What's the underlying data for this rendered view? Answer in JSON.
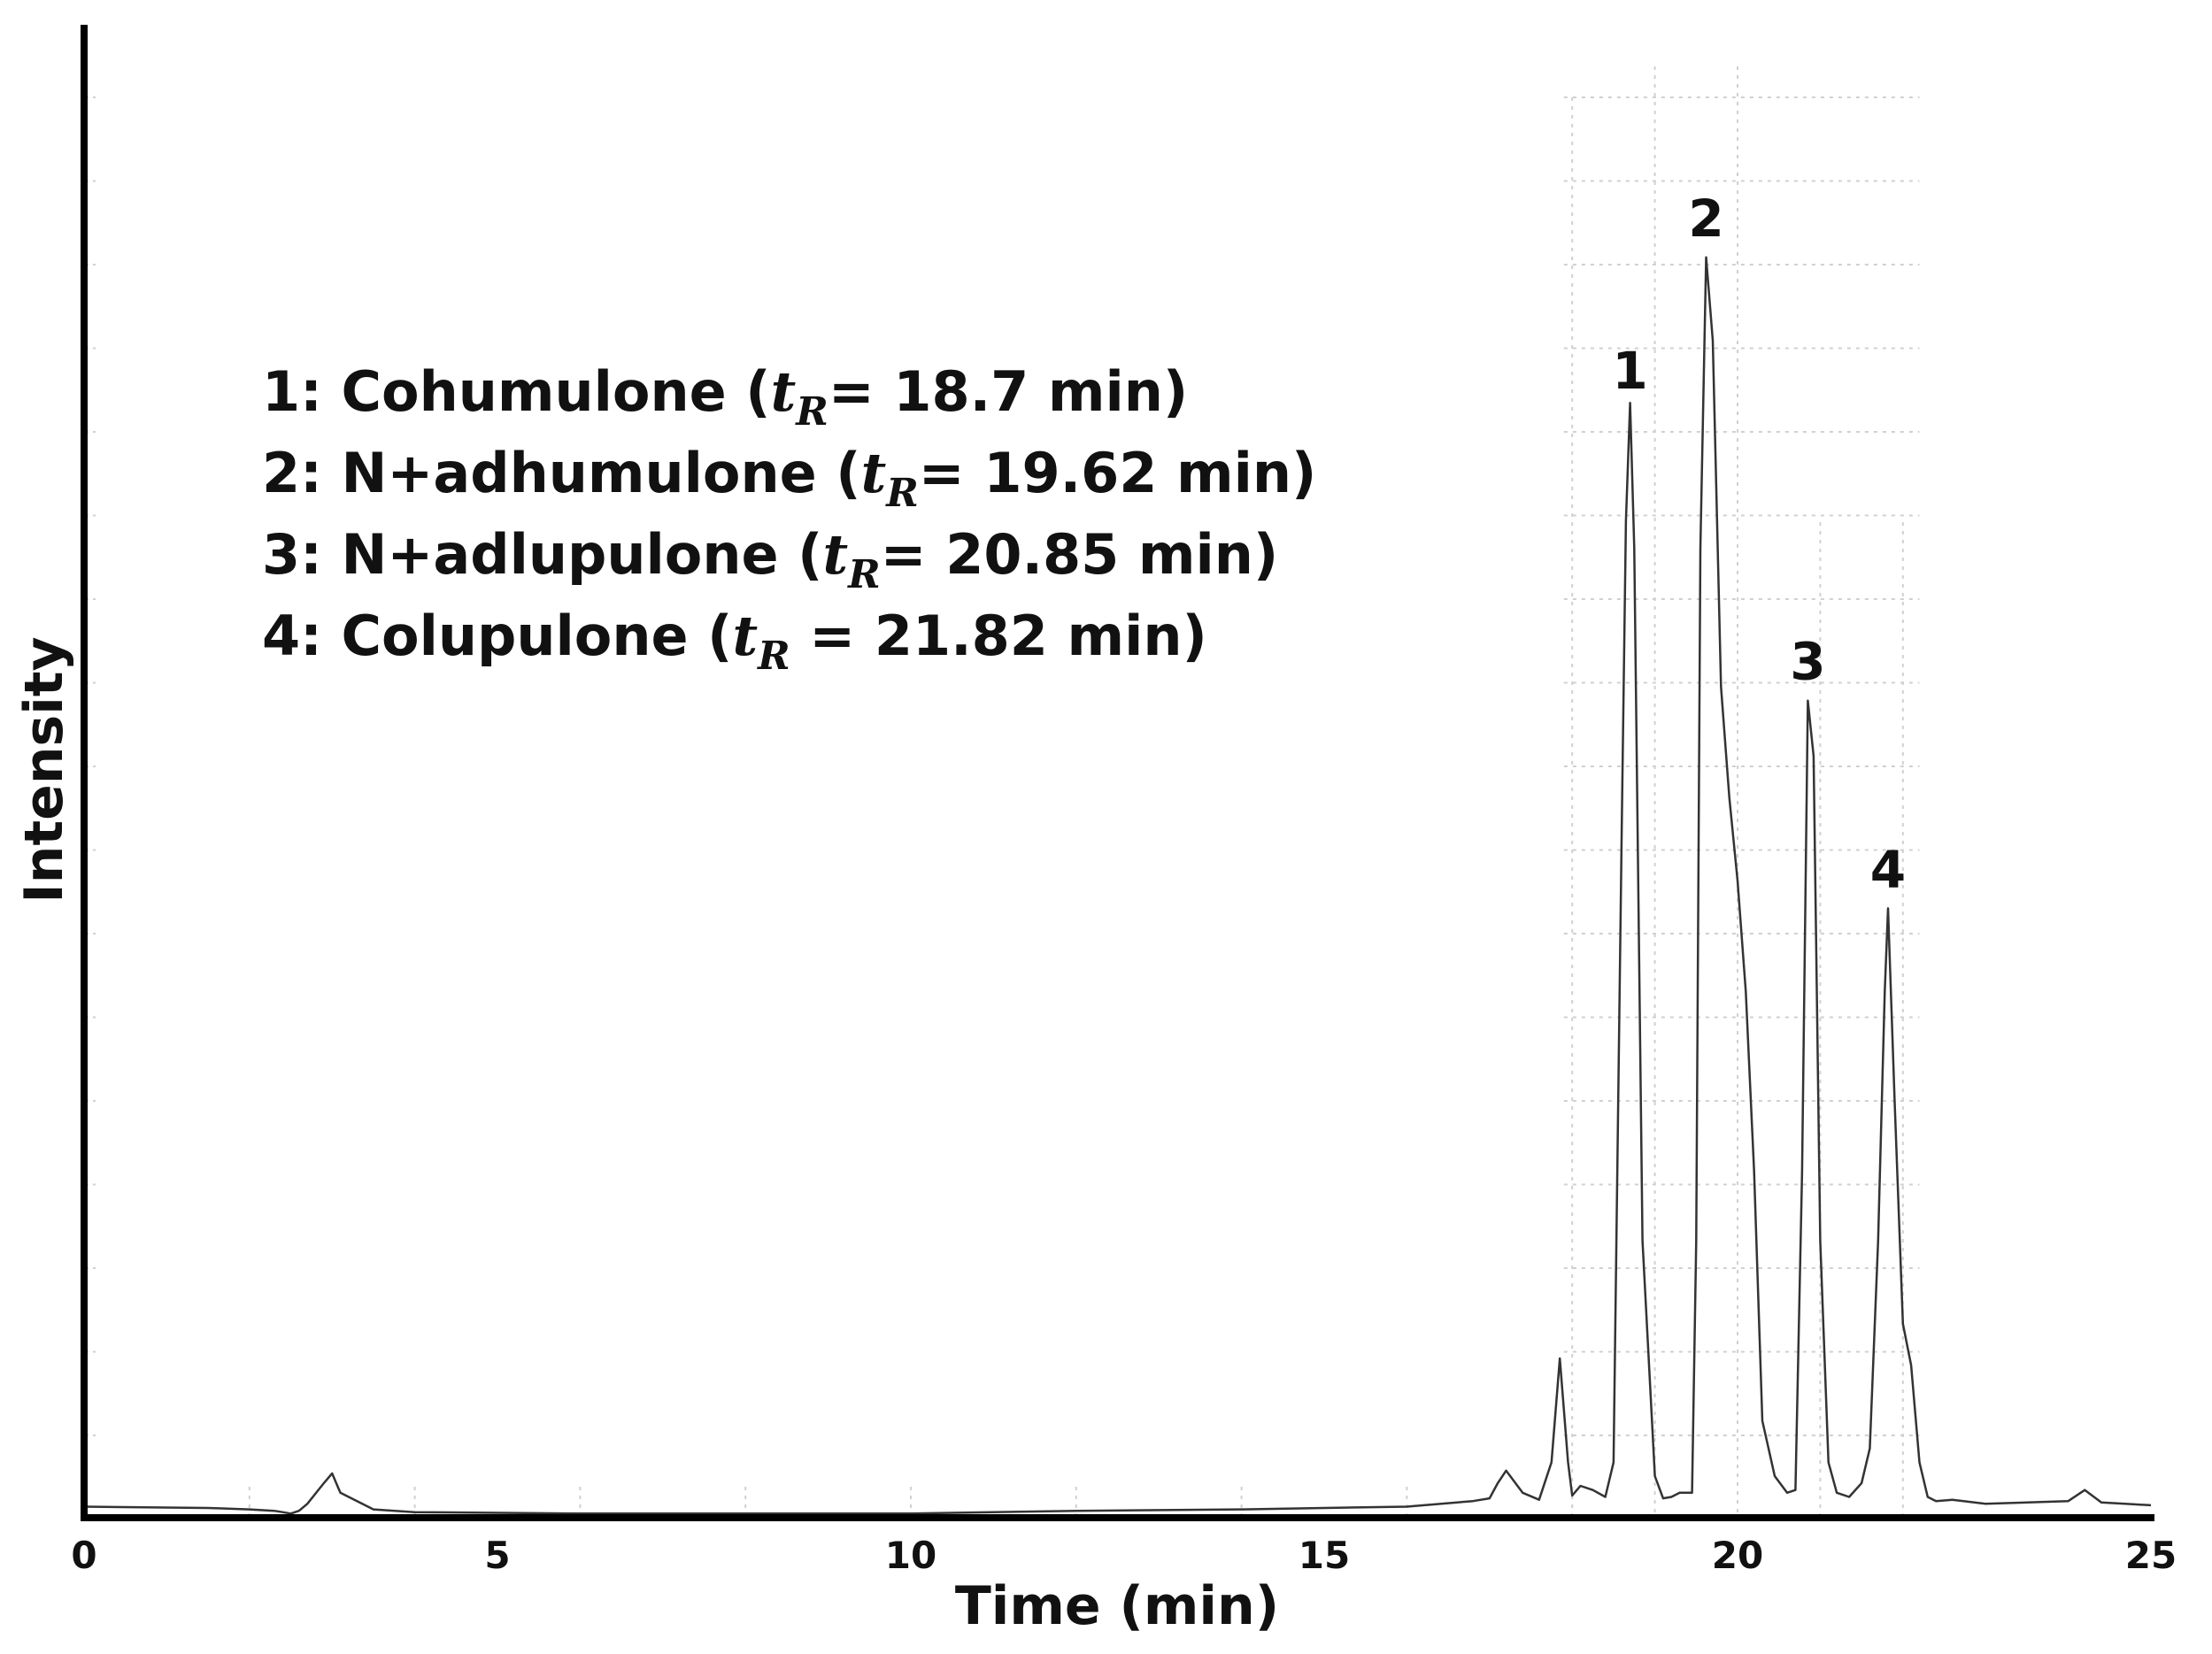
{
  "chart_data": {
    "type": "line",
    "xlabel": "Time (min)",
    "ylabel": "Intensity",
    "xlim": [
      0,
      25
    ],
    "ylim": [
      0,
      100
    ],
    "x_ticks": [
      "0",
      "5",
      "10",
      "15",
      "20",
      "25"
    ],
    "grid": "dotted, partial",
    "line_color": "#333333",
    "peak_labels": [
      {
        "label": "1",
        "x": 18.7,
        "y": 80
      },
      {
        "label": "2",
        "x": 19.62,
        "y": 91
      },
      {
        "label": "3",
        "x": 20.85,
        "y": 59
      },
      {
        "label": "4",
        "x": 21.82,
        "y": 44
      }
    ],
    "series": [
      {
        "x": [
          0,
          1.5,
          2.0,
          2.3,
          2.4,
          2.5,
          2.6,
          2.7,
          2.9,
          3.0,
          3.1,
          3.5,
          4.0,
          6,
          8,
          10,
          12,
          14,
          15,
          16,
          16.8,
          17.0,
          17.1,
          17.2,
          17.4,
          17.6,
          17.75,
          17.85,
          17.95,
          18.0,
          18.1,
          18.25,
          18.4,
          18.5,
          18.6,
          18.65,
          18.7,
          18.75,
          18.85,
          19.0,
          19.1,
          19.2,
          19.3,
          19.45,
          19.5,
          19.55,
          19.62,
          19.7,
          19.8,
          19.9,
          20.0,
          20.1,
          20.2,
          20.3,
          20.45,
          20.6,
          20.7,
          20.78,
          20.85,
          20.92,
          21.0,
          21.1,
          21.2,
          21.35,
          21.5,
          21.6,
          21.7,
          21.78,
          21.82,
          21.9,
          22.0,
          22.1,
          22.2,
          22.3,
          22.4,
          22.6,
          23.0,
          24.0,
          24.2,
          24.4,
          25.0
        ],
        "y": [
          0.8,
          0.7,
          0.6,
          0.5,
          0.4,
          0.3,
          0.5,
          1.0,
          2.5,
          3.2,
          1.8,
          0.6,
          0.4,
          0.3,
          0.3,
          0.3,
          0.5,
          0.6,
          0.7,
          0.8,
          1.2,
          1.4,
          2.5,
          3.4,
          1.8,
          1.3,
          4.0,
          11.5,
          4.0,
          1.6,
          2.3,
          2.0,
          1.5,
          4.0,
          50.0,
          72.0,
          80.5,
          70.0,
          20.0,
          3.0,
          1.4,
          1.5,
          1.8,
          1.8,
          20.0,
          70.0,
          91.0,
          85.0,
          60.0,
          52.0,
          46.0,
          38.0,
          25.0,
          7.0,
          3.0,
          1.8,
          2.0,
          25.0,
          59.0,
          55.0,
          20.0,
          4.0,
          1.8,
          1.5,
          2.5,
          5.0,
          20.0,
          38.0,
          44.0,
          30.0,
          14.0,
          11.0,
          4.0,
          1.5,
          1.2,
          1.3,
          1.0,
          1.2,
          2.0,
          1.1,
          0.9
        ]
      }
    ]
  },
  "legend": {
    "items": [
      {
        "prefix": "1: Cohumulone (",
        "t": "t",
        "sub": "R",
        "suffix": "= 18.7 min)"
      },
      {
        "prefix": "2: N+adhumulone (",
        "t": "t",
        "sub": "R",
        "suffix": "= 19.62 min)"
      },
      {
        "prefix": "3: N+adlupulone (",
        "t": "t",
        "sub": "R",
        "suffix": "= 20.85 min)"
      },
      {
        "prefix": "4: Colupulone (",
        "t": "t",
        "sub": "R",
        "suffix": " = 21.82 min)"
      }
    ]
  }
}
